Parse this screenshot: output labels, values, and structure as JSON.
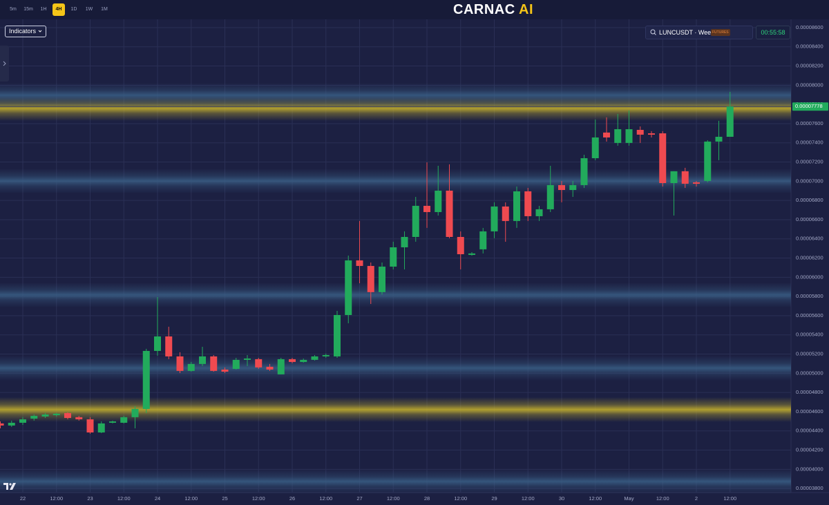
{
  "toolbar": {
    "timeframes": [
      "5m",
      "15m",
      "1H",
      "4H",
      "1D",
      "1W",
      "1M"
    ],
    "active_timeframe": 3
  },
  "logo": {
    "text": "CARNAC",
    "accent": "AI"
  },
  "indicators_button": "Indicators",
  "symbol": {
    "name": "LUNCUSDT · Weex",
    "badge": "FUTURES"
  },
  "countdown": "00:55:58",
  "chart_data": {
    "type": "candlestick",
    "categories": [
      null,
      null,
      "22",
      null,
      null,
      "12:00",
      null,
      null,
      "23",
      null,
      null,
      "12:00",
      null,
      null,
      "24",
      null,
      null,
      "12:00",
      null,
      null,
      "25",
      null,
      null,
      "12:00",
      null,
      null,
      "26",
      null,
      null,
      "12:00",
      null,
      null,
      "27",
      null,
      null,
      "12:00",
      null,
      null,
      "28",
      null,
      null,
      "12:00",
      null,
      null,
      "29",
      null,
      null,
      "12:00",
      null,
      null,
      "30",
      null,
      null,
      "12:00",
      null,
      null,
      "May",
      null,
      null,
      "12:00",
      null,
      null,
      "2",
      null,
      null,
      "12:00"
    ],
    "series": [
      {
        "up_color": "#22ab5c",
        "down_color": "#ef4a50",
        "open": [
          4.478e-05,
          4.456e-05,
          4.485e-05,
          4.528e-05,
          4.55e-05,
          4.564e-05,
          4.586e-05,
          4.543e-05,
          4.521e-05,
          4.384e-05,
          4.485e-05,
          4.485e-05,
          4.543e-05,
          4.629e-05,
          5.233e-05,
          5.384e-05,
          5.176e-05,
          5.025e-05,
          5.097e-05,
          5.176e-05,
          5.039e-05,
          5.046e-05,
          5.14e-05,
          5.147e-05,
          5.068e-05,
          4.989e-05,
          5.147e-05,
          5.118e-05,
          5.14e-05,
          5.176e-05,
          5.176e-05,
          5.607e-05,
          6.176e-05,
          6.118e-05,
          5.845e-05,
          6.111e-05,
          6.312e-05,
          6.42e-05,
          6.744e-05,
          6.679e-05,
          6.902e-05,
          6.42e-05,
          6.233e-05,
          6.291e-05,
          6.478e-05,
          6.737e-05,
          6.586e-05,
          6.895e-05,
          6.636e-05,
          6.708e-05,
          6.96e-05,
          6.909e-05,
          6.96e-05,
          7.24e-05,
          7.507e-05,
          7.399e-05,
          7.399e-05,
          7.535e-05,
          7.499e-05,
          7.499e-05,
          6.981e-05,
          7.104e-05,
          6.989e-05,
          7.003e-05,
          7.413e-05,
          7.463e-05
        ],
        "high": [
          4.499e-05,
          4.507e-05,
          4.543e-05,
          4.571e-05,
          4.586e-05,
          4.586e-05,
          4.593e-05,
          4.557e-05,
          4.543e-05,
          4.499e-05,
          4.507e-05,
          4.557e-05,
          4.658e-05,
          5.255e-05,
          5.794e-05,
          5.485e-05,
          5.219e-05,
          5.118e-05,
          5.276e-05,
          5.19e-05,
          5.061e-05,
          5.161e-05,
          5.19e-05,
          5.161e-05,
          5.097e-05,
          5.161e-05,
          5.161e-05,
          5.154e-05,
          5.19e-05,
          5.205e-05,
          5.65e-05,
          6.226e-05,
          6.586e-05,
          6.154e-05,
          6.154e-05,
          6.37e-05,
          6.478e-05,
          6.837e-05,
          7.197e-05,
          7.161e-05,
          7.176e-05,
          6.478e-05,
          6.262e-05,
          6.514e-05,
          6.78e-05,
          6.78e-05,
          6.945e-05,
          6.931e-05,
          6.744e-05,
          7.161e-05,
          7.003e-05,
          7.003e-05,
          7.276e-05,
          7.643e-05,
          7.665e-05,
          7.701e-05,
          7.737e-05,
          7.571e-05,
          7.521e-05,
          7.521e-05,
          7.104e-05,
          7.14e-05,
          7.003e-05,
          7.427e-05,
          7.629e-05,
          7.931e-05
        ],
        "low": [
          4.427e-05,
          4.442e-05,
          4.463e-05,
          4.507e-05,
          4.535e-05,
          4.55e-05,
          4.521e-05,
          4.507e-05,
          4.37e-05,
          4.377e-05,
          4.478e-05,
          4.478e-05,
          4.427e-05,
          4.586e-05,
          5.183e-05,
          5.147e-05,
          5.003e-05,
          5.017e-05,
          5.075e-05,
          5.017e-05,
          5.003e-05,
          5.039e-05,
          5.075e-05,
          5.046e-05,
          5.025e-05,
          4.989e-05,
          5.104e-05,
          5.111e-05,
          5.133e-05,
          5.161e-05,
          5.161e-05,
          5.521e-05,
          5.938e-05,
          5.722e-05,
          5.82e-05,
          6.082e-05,
          6.082e-05,
          6.37e-05,
          6.514e-05,
          6.643e-05,
          6.406e-05,
          6.082e-05,
          6.226e-05,
          6.248e-05,
          6.406e-05,
          6.37e-05,
          6.514e-05,
          6.586e-05,
          6.586e-05,
          6.679e-05,
          6.78e-05,
          6.837e-05,
          6.931e-05,
          7.219e-05,
          7.413e-05,
          7.37e-05,
          7.37e-05,
          7.399e-05,
          7.456e-05,
          6.945e-05,
          6.643e-05,
          6.931e-05,
          6.945e-05,
          6.989e-05,
          7.219e-05,
          7.463e-05
        ],
        "close": [
          4.456e-05,
          4.485e-05,
          4.521e-05,
          4.557e-05,
          4.571e-05,
          4.579e-05,
          4.535e-05,
          4.521e-05,
          4.384e-05,
          4.478e-05,
          4.499e-05,
          4.543e-05,
          4.629e-05,
          5.233e-05,
          5.384e-05,
          5.176e-05,
          5.025e-05,
          5.097e-05,
          5.176e-05,
          5.025e-05,
          5.017e-05,
          5.14e-05,
          5.154e-05,
          5.061e-05,
          5.039e-05,
          5.147e-05,
          5.118e-05,
          5.14e-05,
          5.176e-05,
          5.19e-05,
          5.607e-05,
          6.176e-05,
          6.118e-05,
          5.845e-05,
          6.111e-05,
          6.312e-05,
          6.42e-05,
          6.744e-05,
          6.679e-05,
          6.902e-05,
          6.42e-05,
          6.24e-05,
          6.248e-05,
          6.478e-05,
          6.737e-05,
          6.586e-05,
          6.895e-05,
          6.636e-05,
          6.708e-05,
          6.96e-05,
          6.909e-05,
          6.96e-05,
          7.24e-05,
          7.456e-05,
          7.456e-05,
          7.542e-05,
          7.542e-05,
          7.485e-05,
          7.485e-05,
          6.981e-05,
          7.104e-05,
          6.974e-05,
          6.974e-05,
          7.413e-05,
          7.463e-05,
          7.778e-05
        ]
      }
    ],
    "last_price": 7.778e-05,
    "last_price_color": "#22ab5c",
    "zones": [
      {
        "value": 7.758e-05,
        "color": "#c9b42c"
      },
      {
        "value": 4.622e-05,
        "color": "#c9b42c"
      },
      {
        "value": 7.895e-05,
        "color": "#3a5f86"
      },
      {
        "value": 7.003e-05,
        "color": "#3a5f86"
      },
      {
        "value": 5.816e-05,
        "color": "#3a5f86"
      },
      {
        "value": 5.053e-05,
        "color": "#3a5f86"
      },
      {
        "value": 3.873e-05,
        "color": "#3a5f86"
      }
    ],
    "ylim": [
      3.758e-05,
      8.686e-05
    ],
    "yticks": [
      {
        "value": 3.8e-05,
        "label": "0.00003800"
      },
      {
        "value": 4e-05,
        "label": "0.00004000"
      },
      {
        "value": 4.2e-05,
        "label": "0.00004200"
      },
      {
        "value": 4.4e-05,
        "label": "0.00004400"
      },
      {
        "value": 4.6e-05,
        "label": "0.00004600"
      },
      {
        "value": 4.8e-05,
        "label": "0.00004800"
      },
      {
        "value": 5e-05,
        "label": "0.00005000"
      },
      {
        "value": 5.2e-05,
        "label": "0.00005200"
      },
      {
        "value": 5.4e-05,
        "label": "0.00005400"
      },
      {
        "value": 5.6e-05,
        "label": "0.00005600"
      },
      {
        "value": 5.8e-05,
        "label": "0.00005800"
      },
      {
        "value": 6e-05,
        "label": "0.00006000"
      },
      {
        "value": 6.2e-05,
        "label": "0.00006200"
      },
      {
        "value": 6.4e-05,
        "label": "0.00006400"
      },
      {
        "value": 6.6e-05,
        "label": "0.00006600"
      },
      {
        "value": 6.8e-05,
        "label": "0.00006800"
      },
      {
        "value": 7e-05,
        "label": "0.00007000"
      },
      {
        "value": 7.2e-05,
        "label": "0.00007200"
      },
      {
        "value": 7.4e-05,
        "label": "0.00007400"
      },
      {
        "value": 7.6e-05,
        "label": "0.00007600"
      },
      {
        "value": 7.8e-05,
        "label": "0.00007800"
      },
      {
        "value": 8e-05,
        "label": "0.00008000"
      },
      {
        "value": 8.2e-05,
        "label": "0.00008200"
      },
      {
        "value": 8.4e-05,
        "label": "0.00008400"
      },
      {
        "value": 8.6e-05,
        "label": "0.00008600"
      }
    ],
    "grid": true
  }
}
